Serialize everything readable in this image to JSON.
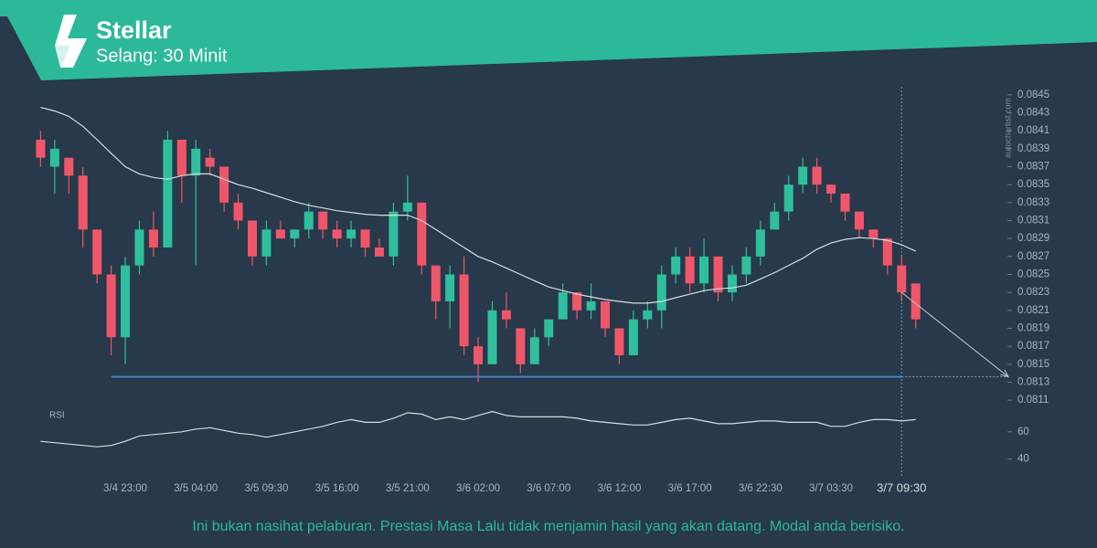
{
  "chart_data": {
    "type": "candlestick",
    "title": "Stellar",
    "subtitle": "Selang: 30 Minit",
    "watermark": "autochartist.com",
    "disclaimer": "Ini bukan nasihat pelaburan. Prestasi Masa Lalu tidak menjamin hasil yang akan datang. Modal anda berisiko.",
    "up_color": "#2fbf9e",
    "down_color": "#f0566a",
    "categories": [
      null,
      null,
      null,
      null,
      null,
      null,
      "3/4 23:00",
      null,
      null,
      null,
      null,
      "3/5 04:00",
      null,
      null,
      null,
      null,
      "3/5 09:30",
      null,
      null,
      null,
      null,
      "3/5 16:00",
      null,
      null,
      null,
      null,
      "3/5 21:00",
      null,
      null,
      null,
      null,
      "3/6 02:00",
      null,
      null,
      null,
      null,
      "3/6 07:00",
      null,
      null,
      null,
      null,
      "3/6 12:00",
      null,
      null,
      null,
      null,
      "3/6 17:00",
      null,
      null,
      null,
      null,
      "3/6 22:30",
      null,
      null,
      null,
      null,
      "3/7 03:30",
      null,
      null,
      null,
      null,
      "3/7 09:30",
      null
    ],
    "open": [
      0.084,
      0.0837,
      0.0838,
      0.0836,
      0.083,
      0.0825,
      0.0818,
      0.0826,
      0.083,
      0.0828,
      0.084,
      0.0836,
      0.0838,
      0.0837,
      0.0833,
      0.0831,
      0.0827,
      0.083,
      0.0829,
      0.083,
      0.0832,
      0.083,
      0.0829,
      0.083,
      0.0828,
      0.0827,
      0.0832,
      0.0833,
      0.0826,
      0.0822,
      0.0825,
      0.0817,
      0.0815,
      0.0821,
      0.0819,
      0.0815,
      0.0818,
      0.082,
      0.0823,
      0.0821,
      0.0822,
      0.0819,
      0.0816,
      0.082,
      0.0821,
      0.0825,
      0.0827,
      0.0824,
      0.0827,
      0.0823,
      0.0825,
      0.0827,
      0.083,
      0.0832,
      0.0835,
      0.0837,
      0.0835,
      0.0834,
      0.0832,
      0.083,
      0.0829,
      0.0826,
      0.0824
    ],
    "high": [
      0.0841,
      0.084,
      0.0838,
      0.0837,
      0.083,
      0.0826,
      0.0827,
      0.0831,
      0.0832,
      0.0841,
      0.084,
      0.084,
      0.0839,
      0.0837,
      0.0834,
      0.0831,
      0.0831,
      0.0831,
      0.083,
      0.0833,
      0.0832,
      0.0831,
      0.0831,
      0.083,
      0.0829,
      0.0833,
      0.0836,
      0.0833,
      0.0826,
      0.0826,
      0.0827,
      0.0818,
      0.0822,
      0.0823,
      0.0819,
      0.0819,
      0.082,
      0.0824,
      0.0823,
      0.0824,
      0.0822,
      0.0819,
      0.0821,
      0.0822,
      0.0826,
      0.0828,
      0.0828,
      0.0829,
      0.0827,
      0.0826,
      0.0828,
      0.0831,
      0.0833,
      0.0836,
      0.0838,
      0.0838,
      0.0835,
      0.0834,
      0.0832,
      0.083,
      0.0829,
      0.0827,
      0.0824
    ],
    "low": [
      0.0837,
      0.0834,
      0.0834,
      0.0828,
      0.0824,
      0.0816,
      0.0815,
      0.0825,
      0.0827,
      0.0828,
      0.0833,
      0.0826,
      0.0836,
      0.0832,
      0.083,
      0.0826,
      0.0826,
      0.0829,
      0.0828,
      0.0829,
      0.0829,
      0.0828,
      0.0828,
      0.0827,
      0.0827,
      0.0826,
      0.0831,
      0.0825,
      0.082,
      0.0819,
      0.0816,
      0.0813,
      0.0815,
      0.0819,
      0.0814,
      0.0815,
      0.0817,
      0.082,
      0.082,
      0.082,
      0.0818,
      0.0815,
      0.0816,
      0.0819,
      0.0819,
      0.0824,
      0.0823,
      0.0823,
      0.0822,
      0.0822,
      0.0824,
      0.0826,
      0.083,
      0.0831,
      0.0834,
      0.0834,
      0.0833,
      0.0831,
      0.0829,
      0.0828,
      0.0825,
      0.0822,
      0.0819
    ],
    "close": [
      0.0838,
      0.0839,
      0.0836,
      0.083,
      0.0825,
      0.0818,
      0.0826,
      0.083,
      0.0828,
      0.084,
      0.0836,
      0.0839,
      0.0837,
      0.0833,
      0.0831,
      0.0827,
      0.083,
      0.0829,
      0.083,
      0.0832,
      0.083,
      0.0829,
      0.083,
      0.0828,
      0.0827,
      0.0832,
      0.0833,
      0.0826,
      0.0822,
      0.0825,
      0.0817,
      0.0815,
      0.0821,
      0.082,
      0.0815,
      0.0818,
      0.082,
      0.0823,
      0.0821,
      0.0822,
      0.0819,
      0.0816,
      0.082,
      0.0821,
      0.0825,
      0.0827,
      0.0824,
      0.0827,
      0.0823,
      0.0825,
      0.0827,
      0.083,
      0.0832,
      0.0835,
      0.0837,
      0.0835,
      0.0834,
      0.0832,
      0.083,
      0.0829,
      0.0826,
      0.0823,
      0.082
    ],
    "moving_average": {
      "color": "#d7dde3",
      "values": [
        0.08436,
        0.08432,
        0.08426,
        0.08415,
        0.084,
        0.08385,
        0.0837,
        0.08362,
        0.08358,
        0.08356,
        0.0836,
        0.08362,
        0.08362,
        0.08356,
        0.0835,
        0.08346,
        0.08341,
        0.08336,
        0.08331,
        0.08327,
        0.08324,
        0.08321,
        0.08319,
        0.08317,
        0.08316,
        0.08316,
        0.08316,
        0.0831,
        0.083,
        0.0829,
        0.0828,
        0.0827,
        0.08264,
        0.08257,
        0.0825,
        0.08243,
        0.08236,
        0.08232,
        0.08228,
        0.08225,
        0.08222,
        0.0822,
        0.08218,
        0.08218,
        0.0822,
        0.08224,
        0.08228,
        0.08232,
        0.08234,
        0.08235,
        0.08238,
        0.08245,
        0.08252,
        0.0826,
        0.08268,
        0.08278,
        0.08285,
        0.08289,
        0.08291,
        0.0829,
        0.08288,
        0.08283,
        0.08276
      ]
    },
    "ylim": [
      0.08103,
      0.08459
    ],
    "yticks": [
      0.0811,
      0.0813,
      0.0815,
      0.0817,
      0.0819,
      0.0821,
      0.0823,
      0.0825,
      0.0827,
      0.0829,
      0.0831,
      0.0833,
      0.0835,
      0.0837,
      0.0839,
      0.0841,
      0.0843,
      0.0845
    ],
    "support": {
      "value": 0.08136,
      "color": "#4a7fc1"
    },
    "forecast": {
      "from": 0.0823,
      "to": 0.08136
    },
    "rsi": {
      "label": "RSI",
      "color": "#d7dde3",
      "ylim": [
        35,
        78
      ],
      "yticks": [
        40,
        60
      ],
      "values": [
        53,
        52,
        51,
        50,
        49,
        50,
        53,
        57,
        58,
        59,
        60,
        62,
        63,
        61,
        59,
        58,
        56,
        58,
        60,
        62,
        64,
        67,
        69,
        67,
        67,
        70,
        74,
        73,
        69,
        71,
        69,
        72,
        75,
        72,
        71,
        71,
        71,
        71,
        70,
        68,
        67,
        66,
        65,
        65,
        67,
        69,
        70,
        68,
        66,
        66,
        67,
        68,
        68,
        67,
        67,
        67,
        64,
        64,
        67,
        69,
        69,
        68,
        69
      ]
    }
  }
}
